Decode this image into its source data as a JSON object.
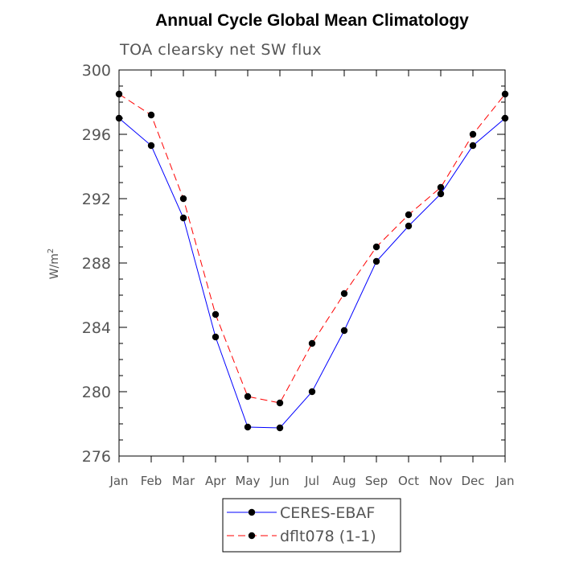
{
  "chart_data": {
    "type": "line",
    "title": "Annual Cycle Global Mean Climatology",
    "subtitle": "TOA clearsky net SW flux",
    "xlabel": "",
    "ylabel": "W/m",
    "ylabel_superscript": "2",
    "categories": [
      "Jan",
      "Feb",
      "Mar",
      "Apr",
      "May",
      "Jun",
      "Jul",
      "Aug",
      "Sep",
      "Oct",
      "Nov",
      "Dec",
      "Jan"
    ],
    "ylim": [
      276,
      300
    ],
    "yticks": [
      276,
      280,
      284,
      288,
      292,
      296,
      300
    ],
    "grid": false,
    "legend_position": "bottom-center",
    "series": [
      {
        "name": "CERES-EBAF",
        "color": "#0000ff",
        "dash": "solid",
        "marker": "filled-circle",
        "values": [
          297.0,
          295.3,
          290.8,
          283.4,
          277.8,
          277.75,
          280.0,
          283.8,
          288.1,
          290.3,
          292.3,
          295.3,
          297.0
        ]
      },
      {
        "name": "dflt078 (1-1)",
        "color": "#ff0000",
        "dash": "dashed",
        "marker": "filled-circle",
        "values": [
          298.5,
          297.2,
          292.0,
          284.8,
          279.7,
          279.3,
          283.0,
          286.1,
          289.0,
          291.0,
          292.7,
          296.0,
          298.5
        ]
      }
    ]
  }
}
